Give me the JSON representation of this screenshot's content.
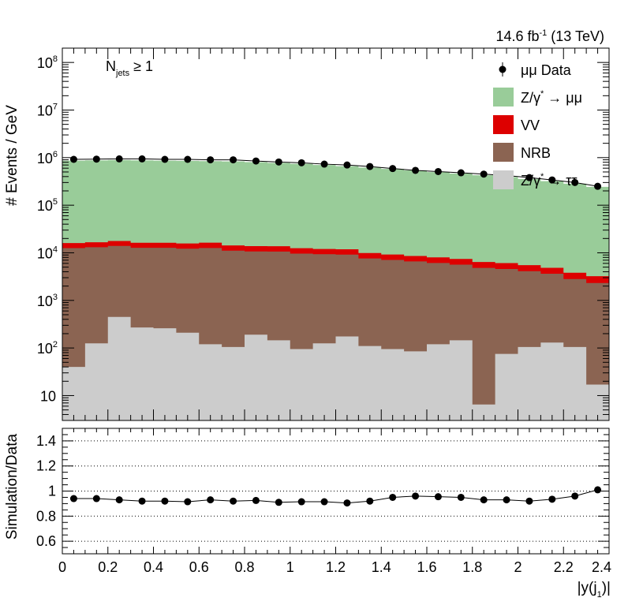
{
  "chart_data": {
    "type": "bar",
    "subtype": "stacked-histogram-with-ratio-panel",
    "top_right_label": {
      "main": "14.6 fb",
      "sup": "-1",
      "rest": " (13 TeV)"
    },
    "annotation": {
      "main": "N",
      "sub": "jets",
      "rest": " ≥ 1"
    },
    "xlabel": "|y(j",
    "xlabel_sub": "1",
    "xlabel_end": ")|",
    "ylabel": "# Events / GeV",
    "ratio_ylabel": "Simulation/Data",
    "xlim": [
      0,
      2.4
    ],
    "ylim": [
      3,
      200000000
    ],
    "yscale": "log",
    "ratio_ylim": [
      0.5,
      1.5
    ],
    "ratio_gridlines": [
      0.6,
      0.8,
      1.0,
      1.2,
      1.4
    ],
    "x_ticks": [
      "0",
      "0.2",
      "0.4",
      "0.6",
      "0.8",
      "1",
      "1.2",
      "1.4",
      "1.6",
      "1.8",
      "2",
      "2.2",
      "2.4"
    ],
    "y_ticks": [
      {
        "value": 10,
        "main": "10",
        "sup": ""
      },
      {
        "value": 100,
        "main": "10",
        "sup": "2"
      },
      {
        "value": 1000,
        "main": "10",
        "sup": "3"
      },
      {
        "value": 10000,
        "main": "10",
        "sup": "4"
      },
      {
        "value": 100000,
        "main": "10",
        "sup": "5"
      },
      {
        "value": 1000000,
        "main": "10",
        "sup": "6"
      },
      {
        "value": 10000000,
        "main": "10",
        "sup": "7"
      },
      {
        "value": 100000000,
        "main": "10",
        "sup": "8"
      }
    ],
    "ratio_ticks": [
      "0.6",
      "0.8",
      "1",
      "1.2",
      "1.4"
    ],
    "bin_edges": [
      0,
      0.1,
      0.2,
      0.3,
      0.4,
      0.5,
      0.6,
      0.7,
      0.8,
      0.9,
      1.0,
      1.1,
      1.2,
      1.3,
      1.4,
      1.5,
      1.6,
      1.7,
      1.8,
      1.9,
      2.0,
      2.1,
      2.2,
      2.3,
      2.4
    ],
    "series": [
      {
        "name": "Z/γ* → ττ",
        "legend_main": "Z/γ",
        "legend_sup": "*",
        "legend_rest": " → ττ",
        "color": "#cccccc",
        "values": [
          40,
          125,
          450,
          270,
          260,
          210,
          120,
          105,
          190,
          145,
          95,
          125,
          175,
          110,
          95,
          85,
          120,
          145,
          6.5,
          75,
          105,
          130,
          105,
          17
        ]
      },
      {
        "name": "NRB",
        "legend_main": "NRB",
        "legend_sup": "",
        "legend_rest": "",
        "color": "#8b6452",
        "values": [
          12500,
          13000,
          13500,
          12500,
          12500,
          12000,
          12500,
          11000,
          10500,
          10500,
          9500,
          9200,
          9000,
          7500,
          7000,
          6500,
          6000,
          5500,
          4800,
          4500,
          4000,
          3500,
          2700,
          2300
        ]
      },
      {
        "name": "VV",
        "legend_main": "VV",
        "legend_sup": "",
        "legend_rest": "",
        "color": "#dd0000",
        "values": [
          3500,
          3500,
          3800,
          3500,
          3500,
          3500,
          3700,
          3200,
          3100,
          3100,
          2900,
          2700,
          2700,
          2300,
          2100,
          2000,
          1900,
          1800,
          1600,
          1500,
          1400,
          1200,
          1000,
          900
        ]
      },
      {
        "name": "Z/γ* → μμ",
        "legend_main": "Z/γ",
        "legend_sup": "*",
        "legend_rest": " → μμ",
        "color": "#99cc99",
        "values": [
          850000,
          860000,
          870000,
          860000,
          850000,
          840000,
          830000,
          820000,
          790000,
          760000,
          730000,
          690000,
          650000,
          610000,
          570000,
          530000,
          490000,
          455000,
          420000,
          385000,
          350000,
          315000,
          280000,
          240000
        ]
      }
    ],
    "data_series": {
      "name": "μμ Data",
      "legend_main": "μμ Data",
      "x": [
        0.05,
        0.15,
        0.25,
        0.35,
        0.45,
        0.55,
        0.65,
        0.75,
        0.85,
        0.95,
        1.05,
        1.15,
        1.25,
        1.35,
        1.45,
        1.55,
        1.65,
        1.75,
        1.85,
        1.95,
        2.05,
        2.15,
        2.25,
        2.35
      ],
      "values": [
        920000,
        930000,
        940000,
        940000,
        920000,
        920000,
        900000,
        900000,
        850000,
        810000,
        780000,
        730000,
        700000,
        650000,
        590000,
        540000,
        510000,
        480000,
        450000,
        420000,
        380000,
        340000,
        300000,
        250000
      ]
    },
    "ratio_values": [
      0.94,
      0.94,
      0.93,
      0.92,
      0.92,
      0.915,
      0.93,
      0.92,
      0.925,
      0.91,
      0.915,
      0.915,
      0.905,
      0.92,
      0.95,
      0.96,
      0.955,
      0.95,
      0.93,
      0.93,
      0.92,
      0.935,
      0.96,
      1.01
    ],
    "legend_position": "top-right",
    "grid": false
  }
}
